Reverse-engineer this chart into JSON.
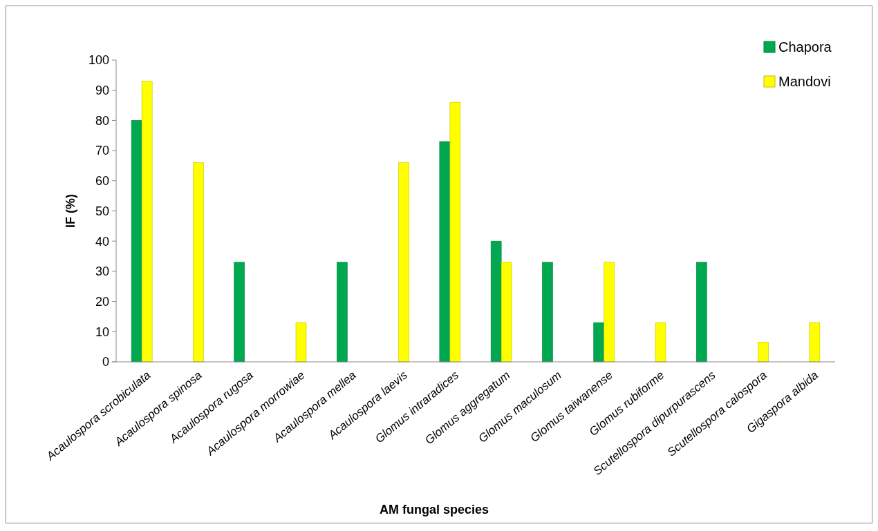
{
  "chart_data": {
    "type": "bar",
    "xlabel": "AM fungal species",
    "ylabel": "IF (%)",
    "categories": [
      "Acaulospora scrobiculata",
      "Acaulospora spinosa",
      "Acaulospora rugosa",
      "Acaulospora morrowiae",
      "Acaulospora mellea",
      "Acaulospora laevis",
      "Glomus intraradices",
      "Glomus aggregatum",
      "Glomus maculosum",
      "Glomus taiwanense",
      "Glomus rubiforme",
      "Scutellospora dipurpurascens",
      "Scutellospora calospora",
      "Gigaspora albida"
    ],
    "series": [
      {
        "name": "Chapora",
        "color": "#00a84f",
        "values": [
          80,
          null,
          33,
          null,
          33,
          null,
          73,
          40,
          33,
          13,
          null,
          33,
          null,
          null
        ]
      },
      {
        "name": "Mandovi",
        "color": "#ffff00",
        "values": [
          93,
          66,
          null,
          13,
          null,
          66,
          86,
          33,
          null,
          33,
          13,
          null,
          6.5,
          13
        ]
      }
    ],
    "ylim": [
      0,
      100
    ],
    "yticks": [
      0,
      10,
      20,
      30,
      40,
      50,
      60,
      70,
      80,
      90,
      100
    ],
    "grid": false,
    "legend": "top right"
  }
}
